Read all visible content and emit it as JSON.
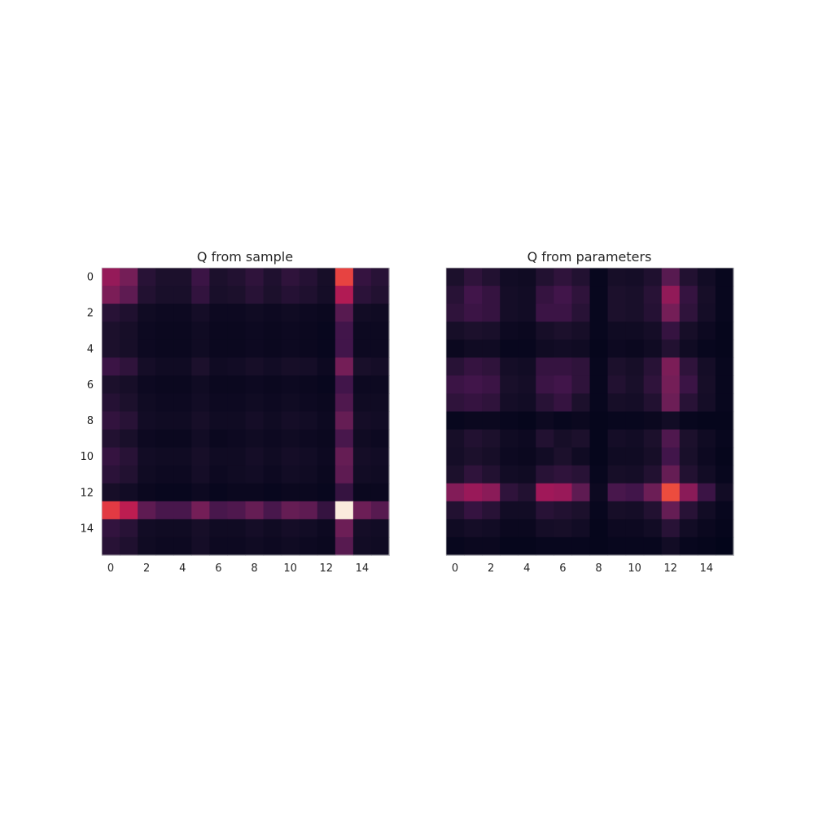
{
  "chart_data": [
    {
      "type": "heatmap",
      "title": "Q from sample",
      "x_ticks": [
        0,
        2,
        4,
        6,
        8,
        10,
        12,
        14
      ],
      "y_ticks": [
        0,
        2,
        4,
        6,
        8,
        10,
        12,
        14
      ],
      "colormap": "rocket",
      "vmin": 0.0,
      "vmax": 1.0,
      "values": [
        [
          0.45,
          0.36,
          0.14,
          0.1,
          0.1,
          0.2,
          0.1,
          0.12,
          0.16,
          0.11,
          0.16,
          0.13,
          0.08,
          0.68,
          0.18,
          0.14
        ],
        [
          0.38,
          0.3,
          0.12,
          0.09,
          0.09,
          0.17,
          0.09,
          0.1,
          0.14,
          0.1,
          0.13,
          0.11,
          0.07,
          0.52,
          0.15,
          0.12
        ],
        [
          0.14,
          0.11,
          0.05,
          0.04,
          0.04,
          0.07,
          0.04,
          0.04,
          0.05,
          0.04,
          0.05,
          0.04,
          0.03,
          0.28,
          0.06,
          0.05
        ],
        [
          0.1,
          0.08,
          0.04,
          0.03,
          0.03,
          0.05,
          0.03,
          0.03,
          0.04,
          0.03,
          0.04,
          0.03,
          0.02,
          0.22,
          0.04,
          0.04
        ],
        [
          0.1,
          0.08,
          0.04,
          0.03,
          0.03,
          0.05,
          0.03,
          0.03,
          0.04,
          0.03,
          0.04,
          0.03,
          0.02,
          0.22,
          0.04,
          0.04
        ],
        [
          0.2,
          0.16,
          0.07,
          0.05,
          0.05,
          0.1,
          0.05,
          0.06,
          0.08,
          0.06,
          0.08,
          0.07,
          0.04,
          0.36,
          0.09,
          0.07
        ],
        [
          0.1,
          0.08,
          0.04,
          0.03,
          0.03,
          0.05,
          0.03,
          0.03,
          0.04,
          0.03,
          0.04,
          0.03,
          0.02,
          0.22,
          0.04,
          0.04
        ],
        [
          0.13,
          0.1,
          0.05,
          0.04,
          0.04,
          0.06,
          0.04,
          0.04,
          0.05,
          0.04,
          0.05,
          0.04,
          0.03,
          0.26,
          0.05,
          0.05
        ],
        [
          0.17,
          0.14,
          0.06,
          0.05,
          0.05,
          0.08,
          0.05,
          0.05,
          0.07,
          0.05,
          0.07,
          0.06,
          0.04,
          0.32,
          0.07,
          0.06
        ],
        [
          0.12,
          0.09,
          0.04,
          0.03,
          0.03,
          0.06,
          0.03,
          0.04,
          0.05,
          0.04,
          0.05,
          0.04,
          0.03,
          0.24,
          0.05,
          0.04
        ],
        [
          0.18,
          0.14,
          0.06,
          0.05,
          0.05,
          0.08,
          0.05,
          0.05,
          0.07,
          0.05,
          0.07,
          0.06,
          0.04,
          0.32,
          0.07,
          0.06
        ],
        [
          0.15,
          0.12,
          0.05,
          0.04,
          0.04,
          0.07,
          0.04,
          0.05,
          0.06,
          0.04,
          0.06,
          0.05,
          0.03,
          0.3,
          0.06,
          0.05
        ],
        [
          0.08,
          0.06,
          0.03,
          0.02,
          0.02,
          0.04,
          0.02,
          0.03,
          0.03,
          0.02,
          0.03,
          0.03,
          0.02,
          0.18,
          0.03,
          0.03
        ],
        [
          0.66,
          0.55,
          0.3,
          0.24,
          0.24,
          0.36,
          0.24,
          0.26,
          0.32,
          0.24,
          0.32,
          0.3,
          0.18,
          1.0,
          0.34,
          0.28
        ],
        [
          0.17,
          0.14,
          0.06,
          0.05,
          0.05,
          0.08,
          0.05,
          0.05,
          0.07,
          0.05,
          0.07,
          0.06,
          0.04,
          0.34,
          0.07,
          0.06
        ],
        [
          0.14,
          0.11,
          0.05,
          0.04,
          0.04,
          0.07,
          0.04,
          0.04,
          0.05,
          0.04,
          0.05,
          0.04,
          0.03,
          0.28,
          0.06,
          0.05
        ]
      ]
    },
    {
      "type": "heatmap",
      "title": "Q from parameters",
      "x_ticks": [
        0,
        2,
        4,
        6,
        8,
        10,
        12,
        14
      ],
      "y_ticks": [],
      "colormap": "rocket",
      "vmin": 0.0,
      "vmax": 1.0,
      "values": [
        [
          0.1,
          0.16,
          0.12,
          0.06,
          0.05,
          0.12,
          0.16,
          0.12,
          0.02,
          0.08,
          0.07,
          0.11,
          0.28,
          0.12,
          0.06,
          0.02
        ],
        [
          0.14,
          0.22,
          0.18,
          0.07,
          0.06,
          0.18,
          0.22,
          0.16,
          0.02,
          0.1,
          0.09,
          0.14,
          0.44,
          0.18,
          0.08,
          0.02
        ],
        [
          0.16,
          0.2,
          0.18,
          0.07,
          0.06,
          0.2,
          0.2,
          0.14,
          0.02,
          0.1,
          0.09,
          0.13,
          0.36,
          0.16,
          0.07,
          0.02
        ],
        [
          0.08,
          0.1,
          0.09,
          0.04,
          0.03,
          0.08,
          0.1,
          0.08,
          0.02,
          0.05,
          0.05,
          0.07,
          0.18,
          0.08,
          0.04,
          0.01
        ],
        [
          0.03,
          0.05,
          0.05,
          0.02,
          0.02,
          0.05,
          0.06,
          0.05,
          0.01,
          0.04,
          0.03,
          0.05,
          0.12,
          0.05,
          0.02,
          0.01
        ],
        [
          0.14,
          0.18,
          0.16,
          0.07,
          0.06,
          0.18,
          0.18,
          0.16,
          0.02,
          0.1,
          0.08,
          0.14,
          0.38,
          0.16,
          0.07,
          0.02
        ],
        [
          0.2,
          0.22,
          0.2,
          0.09,
          0.07,
          0.2,
          0.22,
          0.16,
          0.02,
          0.12,
          0.09,
          0.16,
          0.36,
          0.2,
          0.08,
          0.02
        ],
        [
          0.16,
          0.18,
          0.16,
          0.07,
          0.06,
          0.14,
          0.18,
          0.1,
          0.02,
          0.08,
          0.07,
          0.12,
          0.34,
          0.14,
          0.07,
          0.02
        ],
        [
          0.02,
          0.03,
          0.03,
          0.02,
          0.01,
          0.04,
          0.02,
          0.03,
          0.01,
          0.02,
          0.02,
          0.03,
          0.06,
          0.02,
          0.01,
          0.01
        ],
        [
          0.08,
          0.12,
          0.1,
          0.05,
          0.04,
          0.12,
          0.08,
          0.1,
          0.01,
          0.07,
          0.06,
          0.1,
          0.26,
          0.1,
          0.05,
          0.02
        ],
        [
          0.07,
          0.1,
          0.08,
          0.04,
          0.03,
          0.06,
          0.1,
          0.05,
          0.01,
          0.05,
          0.05,
          0.08,
          0.22,
          0.09,
          0.04,
          0.01
        ],
        [
          0.1,
          0.16,
          0.12,
          0.06,
          0.05,
          0.14,
          0.16,
          0.14,
          0.02,
          0.08,
          0.07,
          0.12,
          0.32,
          0.12,
          0.06,
          0.02
        ],
        [
          0.4,
          0.46,
          0.42,
          0.16,
          0.12,
          0.48,
          0.46,
          0.3,
          0.04,
          0.24,
          0.22,
          0.34,
          0.7,
          0.42,
          0.2,
          0.06
        ],
        [
          0.12,
          0.18,
          0.14,
          0.06,
          0.06,
          0.14,
          0.12,
          0.1,
          0.02,
          0.08,
          0.07,
          0.12,
          0.32,
          0.14,
          0.06,
          0.02
        ],
        [
          0.05,
          0.07,
          0.06,
          0.03,
          0.03,
          0.07,
          0.08,
          0.06,
          0.01,
          0.04,
          0.04,
          0.06,
          0.14,
          0.06,
          0.03,
          0.01
        ],
        [
          0.02,
          0.03,
          0.03,
          0.01,
          0.01,
          0.02,
          0.02,
          0.02,
          0.01,
          0.02,
          0.02,
          0.02,
          0.06,
          0.02,
          0.01,
          0.0
        ]
      ]
    }
  ]
}
